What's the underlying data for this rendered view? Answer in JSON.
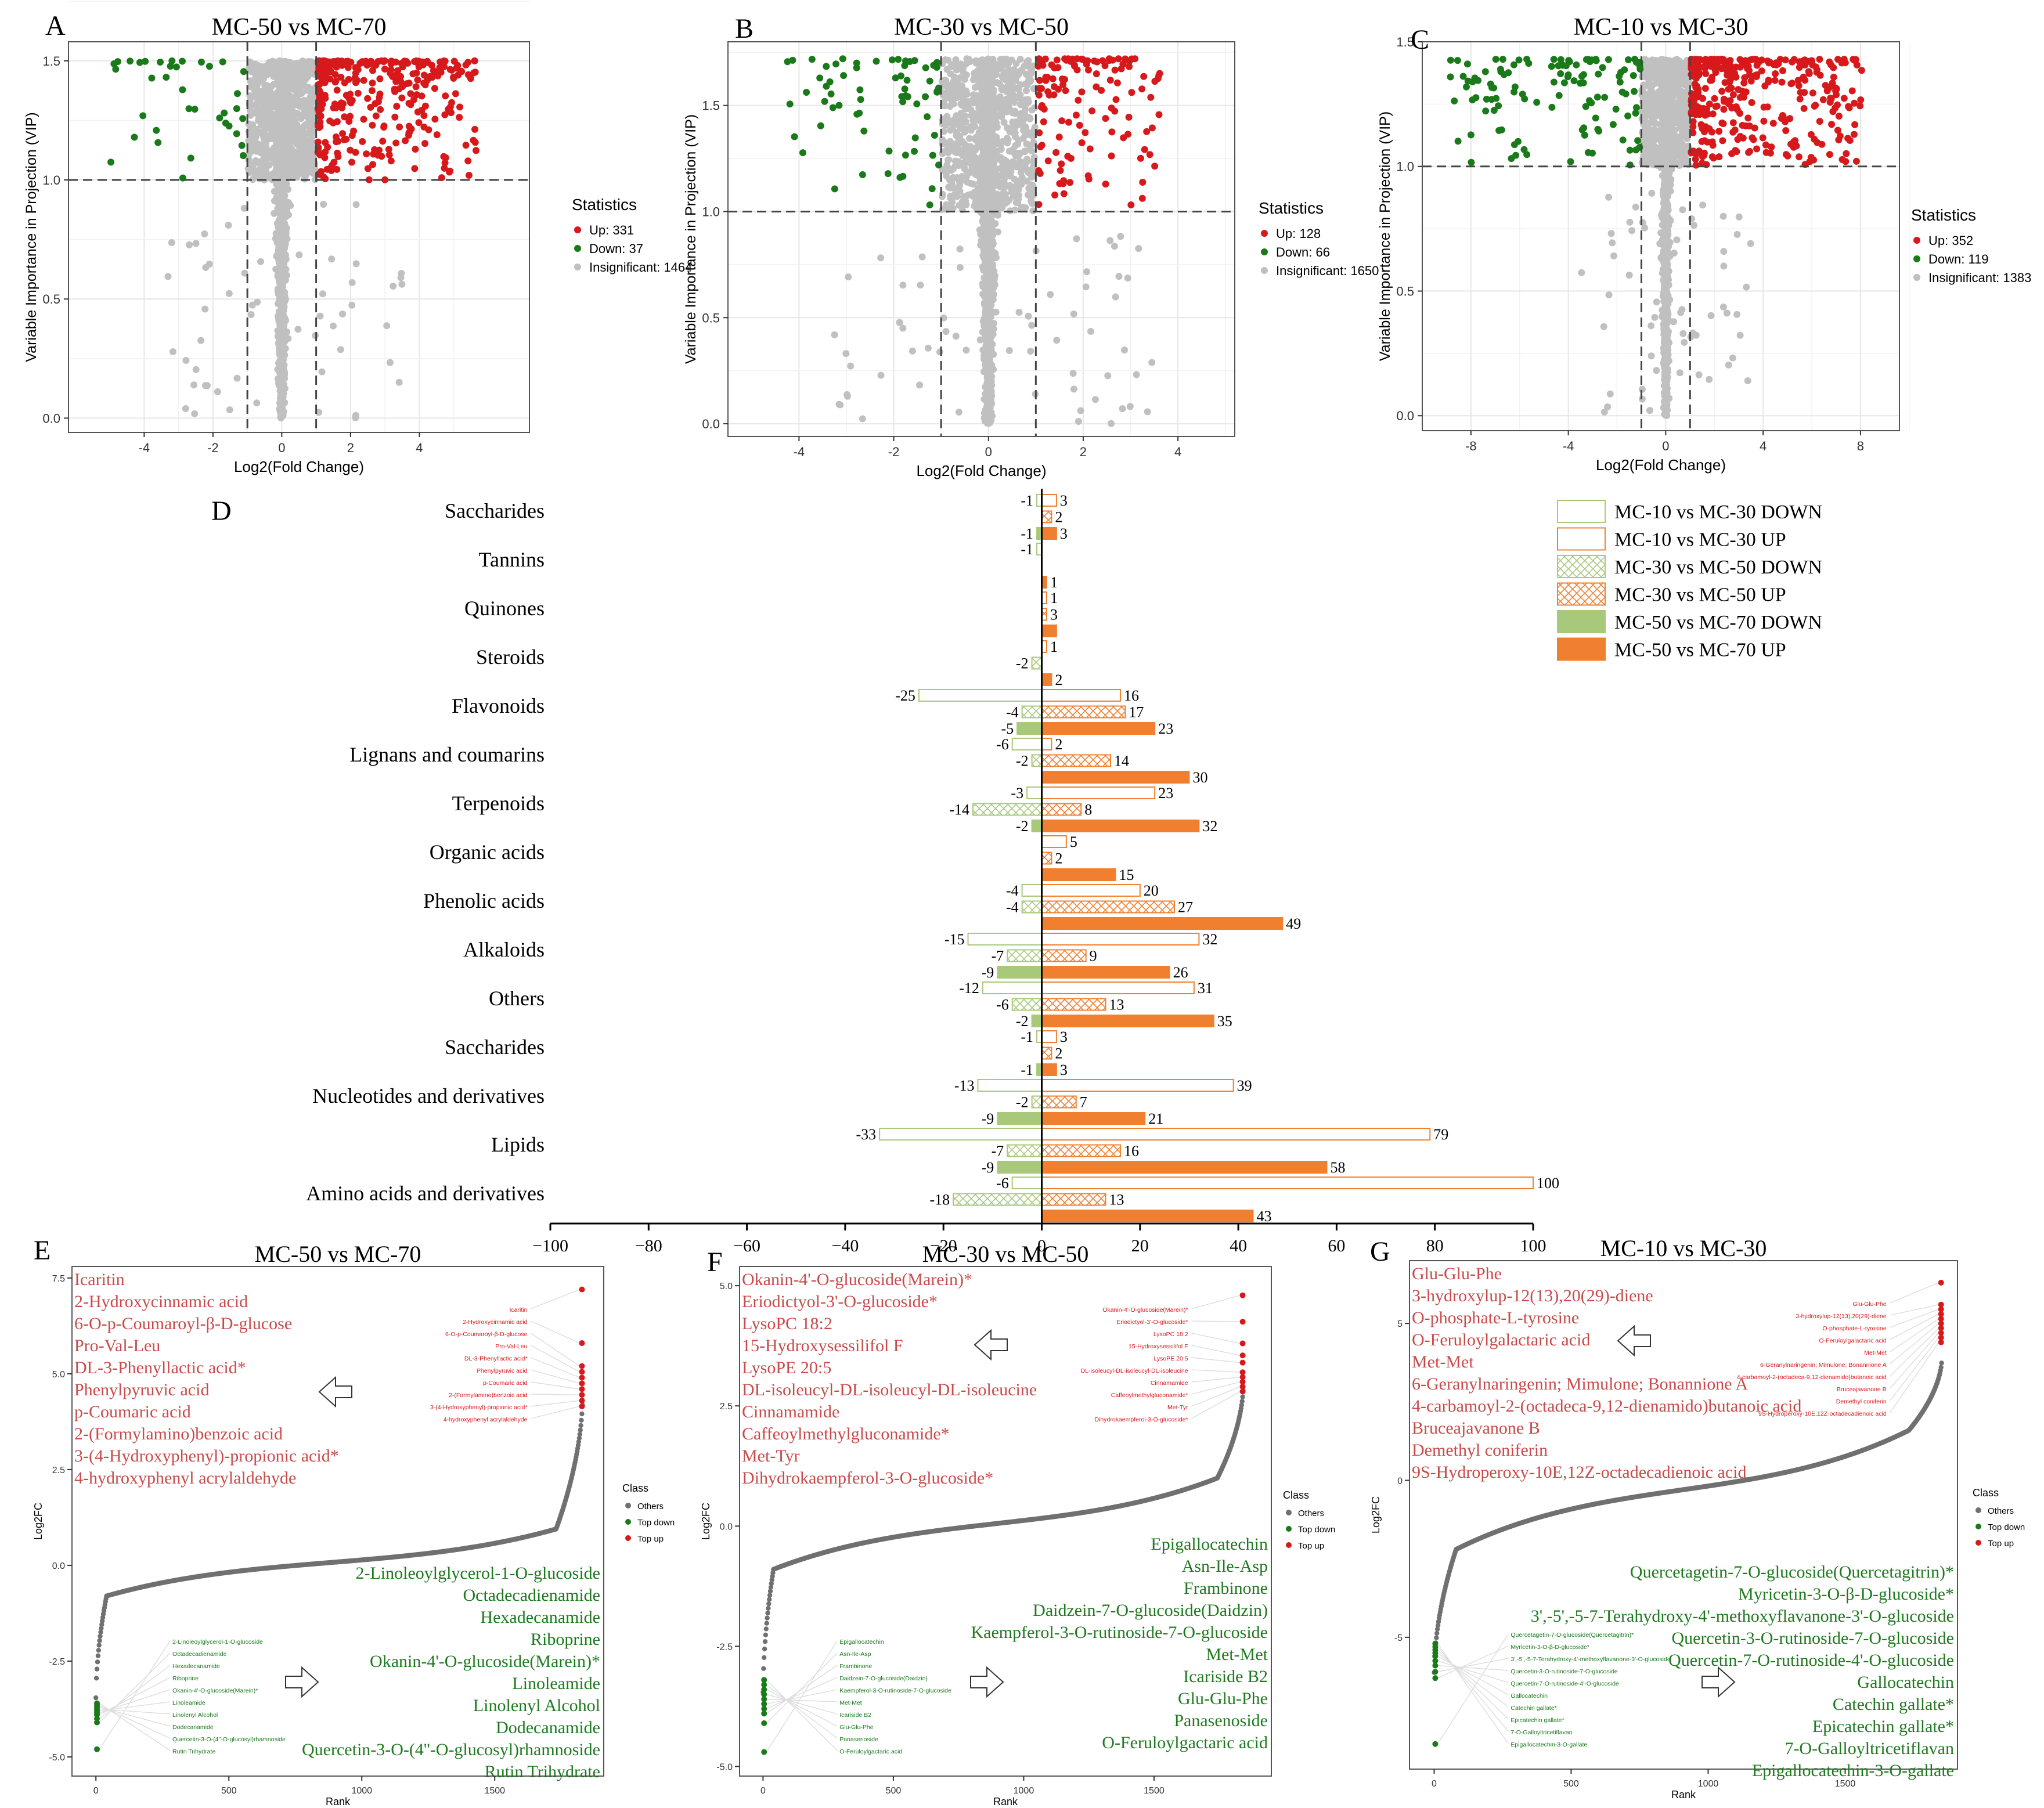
{
  "figure": {
    "colors": {
      "up": "#d7191c",
      "down": "#1a7a1a",
      "insig": "#c0c0c0",
      "orange": "#f08030",
      "green_bar": "#a9c97a",
      "rank_gray": "#707070",
      "label_red": "#c94a4a",
      "label_green": "#1e7a1e",
      "dash": "#444444"
    }
  },
  "chart_data": [
    {
      "id": "A",
      "type": "scatter",
      "panel_letter": "A",
      "title": "MC-50 vs MC-70",
      "xlabel": "Log2(Fold Change)",
      "ylabel": "Variable Importance in Projection (VIP)",
      "xlim": [
        -6.2,
        7.2
      ],
      "ylim": [
        -0.06,
        1.58
      ],
      "xticks": [
        -4,
        -2,
        0,
        2,
        4
      ],
      "yticks": [
        0.0,
        0.5,
        1.0,
        1.5
      ],
      "xtick_labels": [
        "-4",
        "-2",
        "0",
        "2",
        "4"
      ],
      "ytick_labels": [
        "0.0",
        "0.5",
        "1.0",
        "1.5"
      ],
      "fc_threshold": 1,
      "vip_threshold": 1.0,
      "vip_max": 1.5,
      "legend": {
        "title": "Statistics",
        "items": [
          "Up: 331",
          "Down: 37",
          "Insignificant: 1464"
        ]
      },
      "counts": {
        "up": 331,
        "down": 37,
        "insig": 1464
      },
      "seed": 11
    },
    {
      "id": "B",
      "type": "scatter",
      "panel_letter": "B",
      "title": "MC-30 vs MC-50",
      "xlabel": "Log2(Fold Change)",
      "ylabel": "Variable Importance in Projection (VIP)",
      "xlim": [
        -5.5,
        5.2
      ],
      "ylim": [
        -0.06,
        1.8
      ],
      "xticks": [
        -4,
        -2,
        0,
        2,
        4
      ],
      "yticks": [
        0.0,
        0.5,
        1.0,
        1.5
      ],
      "xtick_labels": [
        "-4",
        "-2",
        "0",
        "2",
        "4"
      ],
      "ytick_labels": [
        "0.0",
        "0.5",
        "1.0",
        "1.5"
      ],
      "fc_threshold": 1,
      "vip_threshold": 1.0,
      "vip_max": 1.72,
      "legend": {
        "title": "Statistics",
        "items": [
          "Up: 128",
          "Down: 66",
          "Insignificant: 1650"
        ]
      },
      "counts": {
        "up": 128,
        "down": 66,
        "insig": 1650
      },
      "seed": 22
    },
    {
      "id": "C",
      "type": "scatter",
      "panel_letter": "C",
      "title": "MC-10 vs MC-30",
      "xlabel": "Log2(Fold Change)",
      "ylabel": "Variable Importance in Projection (VIP)",
      "xlim": [
        -10,
        9.6
      ],
      "ylim": [
        -0.06,
        1.5
      ],
      "xticks": [
        -8,
        -4,
        0,
        4,
        8
      ],
      "yticks": [
        0.0,
        0.5,
        1.0,
        1.5
      ],
      "xtick_labels": [
        "-8",
        "-4",
        "0",
        "4",
        "8"
      ],
      "ytick_labels": [
        "0.0",
        "0.5",
        "1.0",
        "1.5"
      ],
      "fc_threshold": 1,
      "vip_threshold": 1.0,
      "vip_max": 1.43,
      "legend": {
        "title": "Statistics",
        "items": [
          "Up: 352",
          "Down: 119",
          "Insignificant: 1383"
        ]
      },
      "counts": {
        "up": 352,
        "down": 119,
        "insig": 1383
      },
      "seed": 33
    },
    {
      "id": "D",
      "type": "bar",
      "orientation": "horizontal",
      "panel_letter": "D",
      "xlim": [
        -100,
        100
      ],
      "xticks": [
        -100,
        -80,
        -60,
        -40,
        -20,
        0,
        20,
        40,
        60,
        80,
        100
      ],
      "xtick_labels": [
        "−100",
        "−80",
        "−60",
        "−40",
        "−20",
        "0",
        "20",
        "40",
        "60",
        "80",
        "100"
      ],
      "categories": [
        "Saccharides",
        "Tannins",
        "Quinones",
        "Steroids",
        "Flavonoids",
        "Lignans and coumarins",
        "Terpenoids",
        "Organic acids",
        "Phenolic acids",
        "Alkaloids",
        "Others",
        "Saccharides",
        "Nucleotides and derivatives",
        "Lipids",
        "Amino acids and derivatives"
      ],
      "legend": [
        "MC-10 vs MC-30 DOWN",
        "MC-10 vs MC-30 UP",
        "MC-30 vs MC-50 DOWN",
        "MC-30 vs MC-50 UP",
        "MC-50 vs MC-70 DOWN",
        "MC-50 vs MC-70 UP"
      ],
      "series": [
        {
          "name": "MC-10 vs MC-30",
          "down": [
            -1,
            -1,
            0,
            0,
            -25,
            -6,
            -3,
            0,
            -4,
            -15,
            -12,
            -1,
            -13,
            -33,
            -6
          ],
          "up": [
            3,
            0,
            1,
            1,
            16,
            2,
            23,
            5,
            20,
            32,
            31,
            3,
            39,
            79,
            100
          ]
        },
        {
          "name": "MC-30 vs MC-50",
          "down": [
            0,
            0,
            0,
            -2,
            -4,
            -2,
            -14,
            0,
            -4,
            -7,
            -6,
            0,
            -2,
            -7,
            -18
          ],
          "up": [
            2,
            0,
            1,
            0,
            17,
            14,
            8,
            2,
            27,
            9,
            13,
            2,
            7,
            16,
            13
          ]
        },
        {
          "name": "MC-50 vs MC-70",
          "down": [
            -1,
            0,
            0,
            0,
            -5,
            0,
            -2,
            0,
            0,
            -9,
            -2,
            -1,
            -9,
            -9,
            0
          ],
          "up": [
            3,
            1,
            3,
            2,
            23,
            30,
            32,
            15,
            49,
            26,
            35,
            3,
            21,
            58,
            43
          ]
        }
      ],
      "value_labels": [
        [
          "-1",
          "3",
          "2",
          "-1",
          "3"
        ],
        [
          "-1",
          "1"
        ],
        [
          "1",
          "3"
        ],
        [
          "1",
          "-2",
          "2"
        ],
        [
          "-25",
          "16",
          "-4",
          "17",
          "-5",
          "23"
        ],
        [
          "-6",
          "2",
          "-2",
          "14",
          "30"
        ],
        [
          "-3",
          "23",
          "-14",
          "8",
          "-2",
          "32"
        ],
        [
          "5",
          "2",
          "15"
        ],
        [
          "-4",
          "20",
          "-4",
          "27",
          "49"
        ],
        [
          "-15",
          "32",
          "-7",
          "9",
          "-9",
          "26"
        ],
        [
          "-12",
          "31",
          "-6",
          "13",
          "-2",
          "35"
        ],
        [
          "-1",
          "3",
          "2",
          "-1",
          "3"
        ],
        [
          "-13",
          "39",
          "-2",
          "7",
          "-9",
          "21"
        ],
        [
          "-33",
          "79",
          "-7",
          "16",
          "-9",
          "58"
        ],
        [
          "-6",
          "100",
          "-18",
          "13",
          "43"
        ]
      ]
    },
    {
      "id": "E",
      "type": "scatter",
      "subtype": "rank",
      "panel_letter": "E",
      "title": "MC-50 vs MC-70",
      "xlabel": "Rank",
      "ylabel": "Log2FC",
      "xlim": [
        -90,
        1910
      ],
      "ylim": [
        -5.5,
        7.8
      ],
      "xticks": [
        0,
        500,
        1000,
        1500
      ],
      "yticks": [
        -5.0,
        -2.5,
        0.0,
        2.5,
        5.0,
        7.5
      ],
      "xtick_labels": [
        "0",
        "500",
        "1000",
        "1500"
      ],
      "ytick_labels": [
        "-5.0",
        "-2.5",
        "0.0",
        "2.5",
        "5.0",
        "7.5"
      ],
      "n": 1832,
      "curve": {
        "min": -4.8,
        "max": 7.2,
        "low": -0.8,
        "high": 0.95,
        "nlow": 40,
        "nhigh": 100
      },
      "legend": {
        "title": "Class",
        "items": [
          "Others",
          "Top down",
          "Top up"
        ]
      },
      "up_labels": [
        "Icaritin",
        "2-Hydroxycinnamic acid",
        "6-O-p-Coumaroyl-β-D-glucose",
        "Pro-Val-Leu",
        "DL-3-Phenyllactic acid*",
        "Phenylpyruvic acid",
        "p-Coumaric acid",
        "2-(Formylamino)benzoic acid",
        "3-(4-Hydroxyphenyl)-propionic acid*",
        "4-hydroxyphenyl acrylaldehyde"
      ],
      "down_labels": [
        "2-Linoleoylglycerol-1-O-glucoside",
        "Octadecadienamide",
        "Hexadecanamide",
        "Riboprine",
        "Okanin-4'-O-glucoside(Marein)*",
        "Linoleamide",
        "Linolenyl Alcohol",
        "Dodecanamide",
        "Quercetin-3-O-(4''-O-glucosyl)rhamnoside",
        "Rutin Trihydrate"
      ],
      "top_up_values": [
        7.2,
        5.8,
        5.2,
        5.05,
        4.9,
        4.75,
        4.6,
        4.45,
        4.3,
        4.15
      ],
      "top_down_values": [
        -4.8,
        -4.1,
        -4.0,
        -3.9,
        -3.85,
        -3.8,
        -3.75,
        -3.7,
        -3.65,
        -3.6
      ]
    },
    {
      "id": "F",
      "type": "scatter",
      "subtype": "rank",
      "panel_letter": "F",
      "title": "MC-30 vs MC-50",
      "xlabel": "Rank",
      "ylabel": "Log2FC",
      "xlim": [
        -90,
        1950
      ],
      "ylim": [
        -5.2,
        5.4
      ],
      "xticks": [
        0,
        500,
        1000,
        1500
      ],
      "yticks": [
        -5.0,
        -2.5,
        0.0,
        2.5,
        5.0
      ],
      "xtick_labels": [
        "0",
        "500",
        "1000",
        "1500"
      ],
      "ytick_labels": [
        "-5.0",
        "-2.5",
        "0.0",
        "2.5",
        "5.0"
      ],
      "n": 1844,
      "curve": {
        "min": -4.8,
        "max": 4.8,
        "low": -0.9,
        "high": 1.0,
        "nlow": 40,
        "nhigh": 100
      },
      "legend": {
        "title": "Class",
        "items": [
          "Others",
          "Top down",
          "Top up"
        ]
      },
      "up_labels": [
        "Okanin-4'-O-glucoside(Marein)*",
        "Eriodictyol-3'-O-glucoside*",
        "LysoPC 18:2",
        "15-Hydroxysessilifol F",
        "LysoPE 20:5",
        "DL-isoleucyl-DL-isoleucyl-DL-isoleucine",
        "Cinnamamide",
        "Caffeoylmethylgluconamide*",
        "Met-Tyr",
        "Dihydrokaempferol-3-O-glucoside*"
      ],
      "down_labels": [
        "Epigallocatechin",
        "Asn-Ile-Asp",
        "Frambinone",
        "Daidzein-7-O-glucoside(Daidzin)",
        "Kaempferol-3-O-rutinoside-7-O-glucoside",
        "Met-Met",
        "Icariside B2",
        "Glu-Glu-Phe",
        "Panasenoside",
        "O-Feruloylgactaric acid"
      ],
      "top_up_values": [
        4.8,
        4.25,
        3.8,
        3.55,
        3.4,
        3.2,
        3.1,
        3.0,
        2.9,
        2.8
      ],
      "top_down_values": [
        -4.7,
        -4.1,
        -3.9,
        -3.8,
        -3.7,
        -3.6,
        -3.5,
        -3.4,
        -3.3,
        -3.2
      ]
    },
    {
      "id": "G",
      "type": "scatter",
      "subtype": "rank",
      "panel_letter": "G",
      "title": "MC-10 vs MC-30",
      "xlabel": "Rank",
      "ylabel": "Log2FC",
      "xlim": [
        -90,
        1910
      ],
      "ylim": [
        -9.2,
        7.0
      ],
      "xticks": [
        0,
        500,
        1000,
        1500
      ],
      "yticks": [
        -5,
        0,
        5
      ],
      "xtick_labels": [
        "0",
        "500",
        "1000",
        "1500"
      ],
      "ytick_labels": [
        "-5",
        "0",
        "5"
      ],
      "n": 1854,
      "curve": {
        "min": -8.5,
        "max": 6.3,
        "low": -2.2,
        "high": 1.6,
        "nlow": 80,
        "nhigh": 120
      },
      "legend": {
        "title": "Class",
        "items": [
          "Others",
          "Top down",
          "Top up"
        ]
      },
      "up_labels": [
        "Glu-Glu-Phe",
        "3-hydroxylup-12(13),20(29)-diene",
        "O-phosphate-L-tyrosine",
        "O-Feruloylgalactaric acid",
        "Met-Met",
        "6-Geranylnaringenin; Mimulone; Bonannione A",
        "4-carbamoyl-2-(octadeca-9,12-dienamido)butanoic acid",
        "Bruceajavanone B",
        "Demethyl coniferin",
        "9S-Hydroperoxy-10E,12Z-octadecadienoic acid"
      ],
      "down_labels": [
        "Quercetagetin-7-O-glucoside(Quercetagitrin)*",
        "Myricetin-3-O-β-D-glucoside*",
        "3',-5',-5-7-Terahydroxy-4'-methoxyflavanone-3'-O-glucoside",
        "Quercetin-3-O-rutinoside-7-O-glucoside",
        "Quercetin-7-O-rutinoside-4'-O-glucoside",
        "Gallocatechin",
        "Catechin gallate*",
        "Epicatechin gallate*",
        "7-O-Galloyltricetiflavan",
        "Epigallocatechin-3-O-gallate"
      ],
      "top_up_values": [
        6.3,
        5.6,
        5.45,
        5.3,
        5.15,
        5.0,
        4.85,
        4.7,
        4.55,
        4.4
      ],
      "top_down_values": [
        -8.4,
        -6.3,
        -6.1,
        -5.9,
        -5.75,
        -5.6,
        -5.5,
        -5.4,
        -5.3,
        -5.2
      ]
    }
  ]
}
